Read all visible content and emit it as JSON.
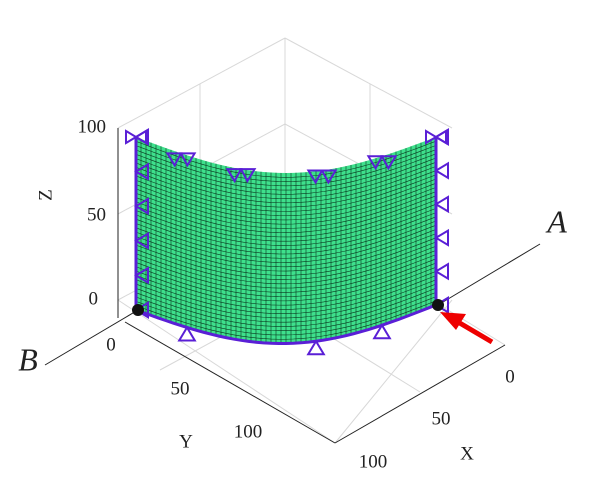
{
  "axes": {
    "z": {
      "label": "Z",
      "ticks": [
        0,
        50,
        100
      ]
    },
    "y": {
      "label": "Y",
      "ticks": [
        0,
        50,
        100
      ]
    },
    "x": {
      "label": "X",
      "ticks": [
        0,
        50,
        100
      ]
    }
  },
  "annotations": {
    "a": "A",
    "b": "B"
  }
}
